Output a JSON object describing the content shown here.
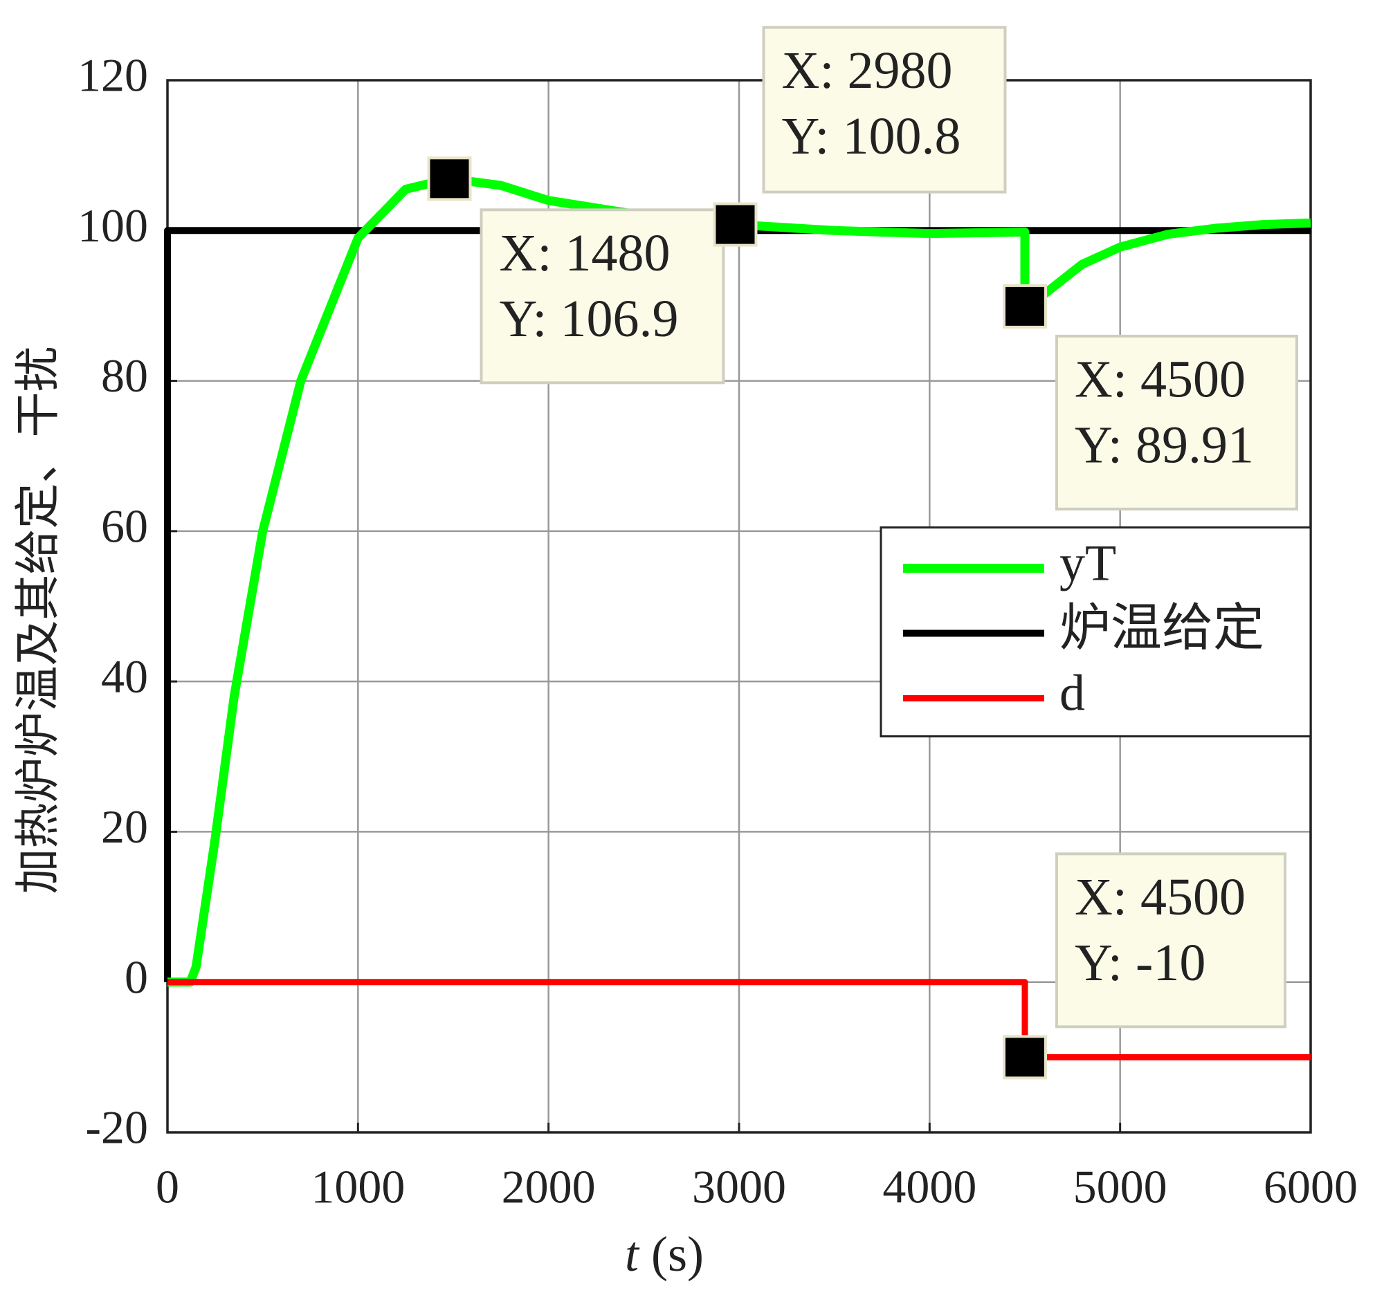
{
  "chart_data": {
    "type": "line",
    "ylabel": "加热炉炉温及其给定、干扰",
    "xlabel": {
      "var": "t",
      "unit": "(s)"
    },
    "xlim": [
      0,
      6000
    ],
    "xticks": [
      0,
      1000,
      2000,
      3000,
      4000,
      5000,
      6000
    ],
    "ylim": [
      -20,
      120
    ],
    "yticks": [
      -20,
      0,
      20,
      40,
      60,
      80,
      100,
      120
    ],
    "grid": true,
    "legend": "east",
    "series": [
      {
        "name": "yT",
        "color": "#00ff00",
        "x": [
          0,
          120,
          150,
          250,
          350,
          500,
          700,
          1000,
          1250,
          1480,
          1750,
          2000,
          2500,
          2980,
          3500,
          4000,
          4500,
          4500,
          4600,
          4800,
          5000,
          5250,
          5500,
          5750,
          6000
        ],
        "values": [
          0,
          0,
          2,
          19,
          38,
          60,
          80,
          99,
          105.5,
          106.9,
          106,
          104,
          102,
          100.8,
          100,
          99.6,
          99.8,
          89.91,
          91.5,
          95.5,
          97.8,
          99.5,
          100.3,
          100.8,
          101
        ]
      },
      {
        "name": "炉温给定",
        "color": "#000000",
        "x": [
          0,
          0,
          6000
        ],
        "values": [
          0,
          100,
          100
        ]
      },
      {
        "name": "d",
        "color": "#ff0000",
        "x": [
          0,
          4500,
          4500,
          6000
        ],
        "values": [
          0,
          0,
          -10,
          -10
        ]
      }
    ],
    "datatips": [
      {
        "x": 1480,
        "y": 106.9,
        "x_label": "X: 1480",
        "y_label": "Y: 106.9"
      },
      {
        "x": 2980,
        "y": 100.8,
        "x_label": "X: 2980",
        "y_label": "Y: 100.8"
      },
      {
        "x": 4500,
        "y": 89.91,
        "x_label": "X: 4500",
        "y_label": "Y: 89.91"
      },
      {
        "x": 4500,
        "y": -10,
        "x_label": "X: 4500",
        "y_label": "Y: -10"
      }
    ]
  }
}
